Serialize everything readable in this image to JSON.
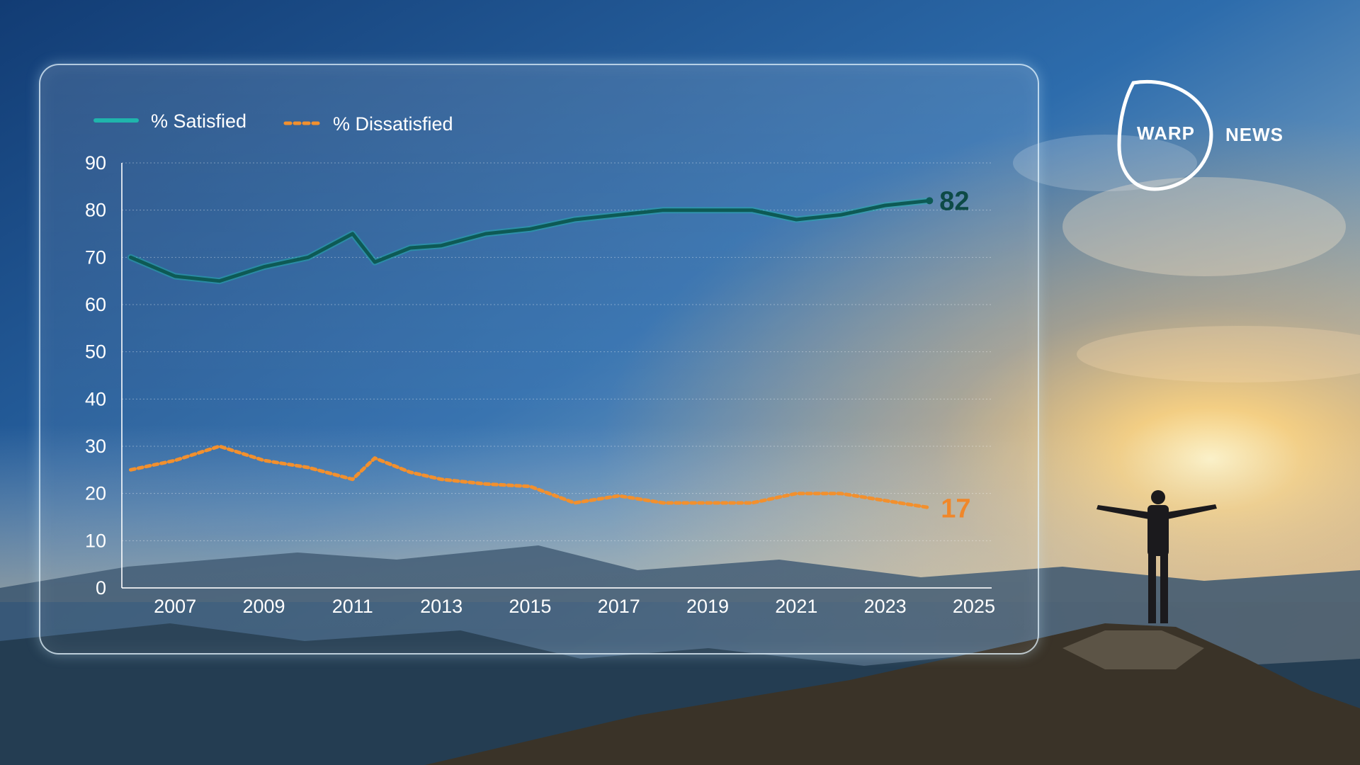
{
  "colors": {
    "satisfied": "#1fb5ac",
    "satisfied_dark": "#0d5a55",
    "dissatisfied": "#f2902e",
    "end_label_satisfied": "#0d4a46",
    "end_label_dissatisfied": "#f0872a"
  },
  "logo": {
    "left_word": "WARP",
    "right_word": "NEWS"
  },
  "chart_data": {
    "type": "line",
    "legend": {
      "position": "top-left"
    },
    "grid": true,
    "x": [
      2006,
      2007,
      2008,
      2009,
      2010,
      2011,
      2011.5,
      2012.3,
      2013,
      2014,
      2015,
      2016,
      2017,
      2018,
      2019,
      2020,
      2021,
      2022,
      2023,
      2024,
      2025
    ],
    "xlim": [
      2005.8,
      2025.4
    ],
    "x_ticks": [
      "2007",
      "2009",
      "2011",
      "2013",
      "2015",
      "2017",
      "2019",
      "2021",
      "2023",
      "2025"
    ],
    "ylim": [
      0,
      90
    ],
    "y_ticks": [
      0,
      10,
      20,
      30,
      40,
      50,
      60,
      70,
      80,
      90
    ],
    "series": [
      {
        "name": "% Satisfied",
        "style": "solid",
        "values": [
          70,
          66,
          65,
          68,
          70,
          75,
          69,
          72,
          72.5,
          75,
          76,
          78,
          79,
          80,
          80,
          80,
          78,
          79,
          81,
          82,
          null
        ],
        "end_label": "82"
      },
      {
        "name": "% Dissatisfied",
        "style": "dotted",
        "values": [
          25,
          27,
          30,
          27,
          25.5,
          23,
          27.5,
          24.5,
          23,
          22,
          21.5,
          18,
          19.5,
          18,
          18,
          18,
          20,
          20,
          18.5,
          17,
          null
        ],
        "end_label": "17"
      }
    ]
  }
}
